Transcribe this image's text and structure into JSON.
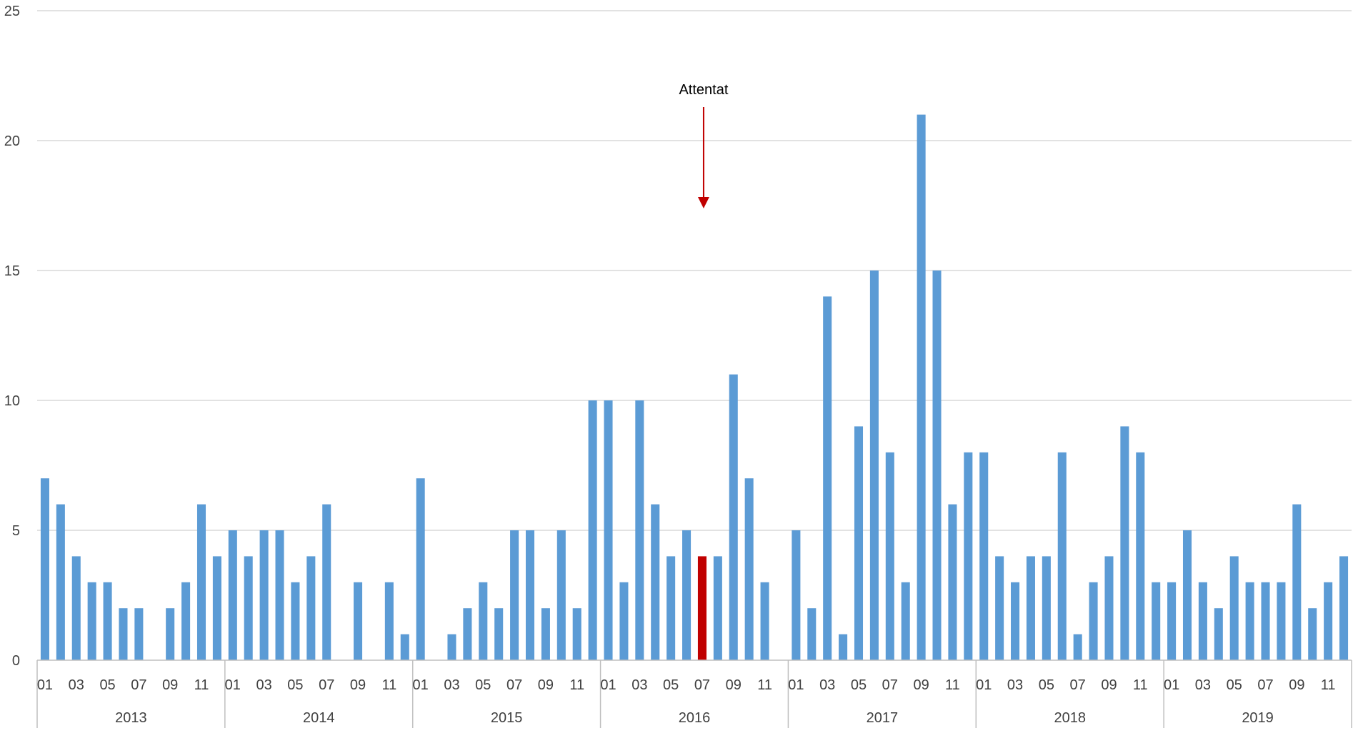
{
  "chart_data": {
    "type": "bar",
    "title": "",
    "xlabel": "",
    "ylabel": "",
    "ylim": [
      0,
      25
    ],
    "yticks": [
      0,
      5,
      10,
      15,
      20,
      25
    ],
    "grid": true,
    "legend": "none",
    "years": [
      "2013",
      "2014",
      "2015",
      "2016",
      "2017",
      "2018",
      "2019"
    ],
    "month_labels": [
      "01",
      "",
      "03",
      "",
      "05",
      "",
      "07",
      "",
      "09",
      "",
      "11",
      ""
    ],
    "values": [
      7,
      6,
      4,
      3,
      3,
      2,
      2,
      0,
      2,
      3,
      6,
      4,
      5,
      4,
      5,
      5,
      3,
      4,
      6,
      0,
      3,
      0,
      3,
      1,
      7,
      0,
      1,
      2,
      3,
      2,
      5,
      5,
      2,
      5,
      2,
      10,
      10,
      3,
      10,
      6,
      4,
      5,
      4,
      4,
      11,
      7,
      3,
      0,
      5,
      2,
      14,
      1,
      9,
      15,
      8,
      3,
      21,
      15,
      6,
      8,
      8,
      4,
      3,
      4,
      4,
      8,
      1,
      3,
      4,
      9,
      8,
      3,
      3,
      5,
      3,
      2,
      4,
      3,
      3,
      3,
      6,
      2,
      3,
      4
    ],
    "highlight": {
      "year": "2016",
      "month": "07"
    },
    "annotation": {
      "text": "Attentat",
      "year": "2016",
      "month": "07"
    },
    "colors": {
      "bar": "#5b9bd5",
      "highlight": "#c00000",
      "arrow": "#c00000",
      "grid": "#d9d9d9",
      "axis": "#bfbfbf"
    }
  }
}
